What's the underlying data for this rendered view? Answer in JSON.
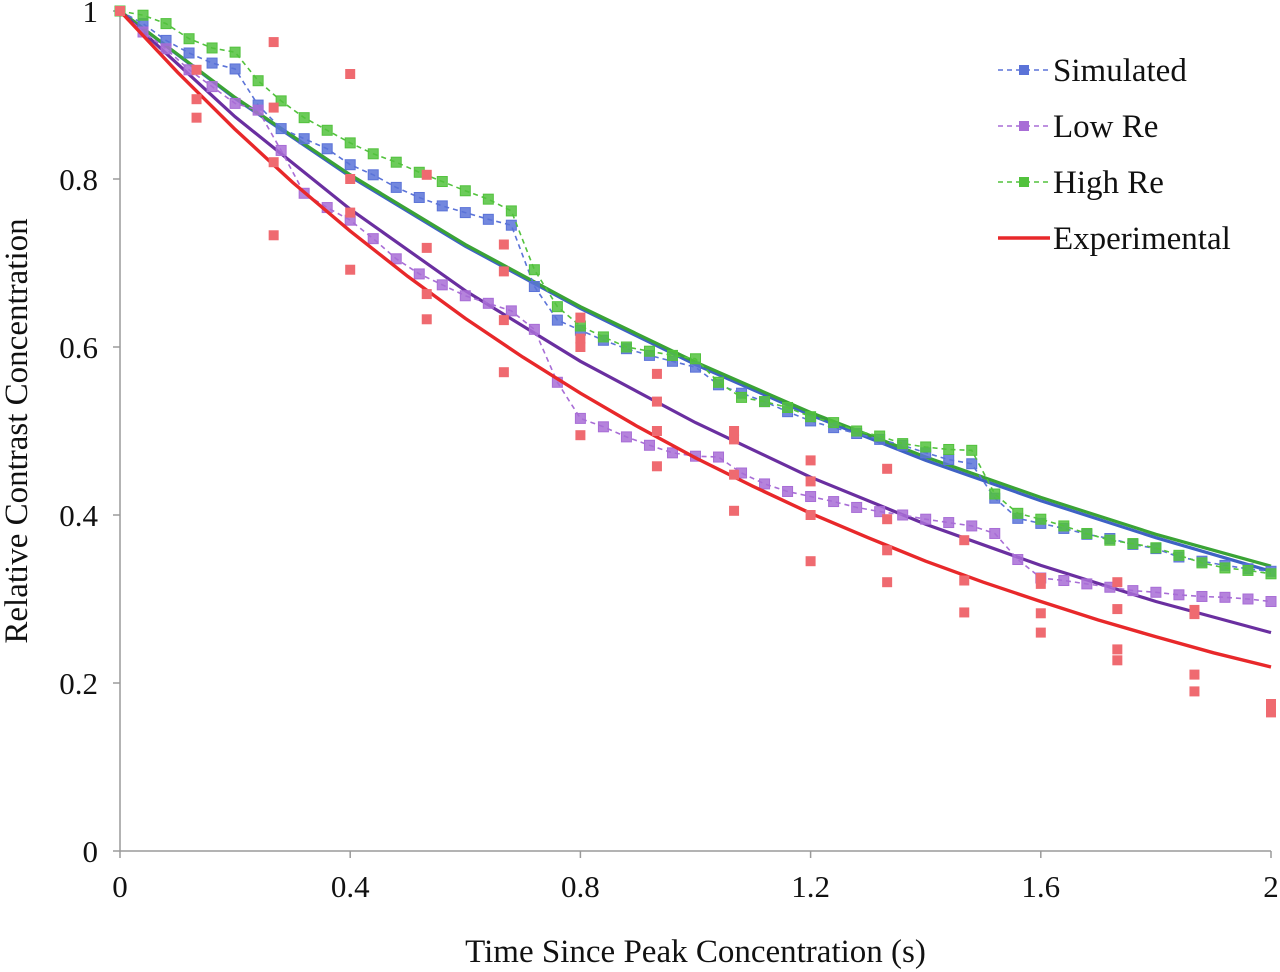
{
  "chart_data": {
    "type": "scatter",
    "title": "",
    "xlabel": "Time Since Peak Concentration (s)",
    "ylabel": "Relative Contrast Concentration",
    "xlim": [
      0,
      2
    ],
    "ylim": [
      0,
      1
    ],
    "x_ticks": [
      "0",
      "0.4",
      "0.8",
      "1.2",
      "1.6",
      "2"
    ],
    "y_ticks": [
      "0",
      "0.2",
      "0.4",
      "0.6",
      "0.8",
      "1"
    ],
    "x_tick_values": [
      0,
      0.4,
      0.8,
      1.2,
      1.6,
      2
    ],
    "y_tick_values": [
      0,
      0.2,
      0.4,
      0.6,
      0.8,
      1
    ],
    "grid": false,
    "legend_position": "top-right",
    "colors": {
      "simulated": "#5b73d8",
      "low_re": "#a86dd6",
      "high_re": "#52c23d",
      "experimental": "#e8282a",
      "experimental_points": "#ef6a70",
      "simulated_fit": "#3f62c4",
      "low_re_fit": "#6a2fa0",
      "high_re_fit": "#3aa335"
    },
    "series": [
      {
        "name": "Simulated",
        "style": "dashed-line-square-markers",
        "x": [
          0,
          0.04,
          0.08,
          0.12,
          0.16,
          0.2,
          0.24,
          0.28,
          0.32,
          0.36,
          0.4,
          0.44,
          0.48,
          0.52,
          0.56,
          0.6,
          0.64,
          0.68,
          0.72,
          0.76,
          0.8,
          0.84,
          0.88,
          0.92,
          0.96,
          1.0,
          1.04,
          1.08,
          1.12,
          1.16,
          1.2,
          1.24,
          1.28,
          1.32,
          1.36,
          1.4,
          1.44,
          1.48,
          1.52,
          1.56,
          1.6,
          1.64,
          1.68,
          1.72,
          1.76,
          1.8,
          1.84,
          1.88,
          1.92,
          1.96,
          2.0
        ],
        "y": [
          1,
          0.985,
          0.965,
          0.95,
          0.938,
          0.931,
          0.888,
          0.86,
          0.848,
          0.836,
          0.817,
          0.805,
          0.79,
          0.778,
          0.768,
          0.76,
          0.752,
          0.745,
          0.672,
          0.632,
          0.62,
          0.608,
          0.598,
          0.59,
          0.583,
          0.576,
          0.555,
          0.545,
          0.535,
          0.523,
          0.512,
          0.504,
          0.497,
          0.49,
          0.483,
          0.474,
          0.466,
          0.461,
          0.42,
          0.396,
          0.39,
          0.384,
          0.377,
          0.372,
          0.365,
          0.36,
          0.35,
          0.345,
          0.34,
          0.336,
          0.333
        ]
      },
      {
        "name": "Low Re",
        "style": "dashed-line-square-markers",
        "x": [
          0,
          0.04,
          0.08,
          0.12,
          0.16,
          0.2,
          0.24,
          0.28,
          0.32,
          0.36,
          0.4,
          0.44,
          0.48,
          0.52,
          0.56,
          0.6,
          0.64,
          0.68,
          0.72,
          0.76,
          0.8,
          0.84,
          0.88,
          0.92,
          0.96,
          1.0,
          1.04,
          1.08,
          1.12,
          1.16,
          1.2,
          1.24,
          1.28,
          1.32,
          1.36,
          1.4,
          1.44,
          1.48,
          1.52,
          1.56,
          1.6,
          1.64,
          1.68,
          1.72,
          1.76,
          1.8,
          1.84,
          1.88,
          1.92,
          1.96,
          2.0
        ],
        "y": [
          1,
          0.975,
          0.955,
          0.93,
          0.91,
          0.89,
          0.882,
          0.834,
          0.783,
          0.766,
          0.751,
          0.729,
          0.705,
          0.687,
          0.674,
          0.661,
          0.652,
          0.643,
          0.621,
          0.558,
          0.515,
          0.505,
          0.493,
          0.483,
          0.474,
          0.47,
          0.469,
          0.45,
          0.437,
          0.428,
          0.422,
          0.416,
          0.409,
          0.404,
          0.4,
          0.395,
          0.391,
          0.387,
          0.378,
          0.347,
          0.325,
          0.322,
          0.318,
          0.314,
          0.31,
          0.308,
          0.305,
          0.303,
          0.302,
          0.3,
          0.297
        ]
      },
      {
        "name": "High Re",
        "style": "dashed-line-square-markers",
        "x": [
          0,
          0.04,
          0.08,
          0.12,
          0.16,
          0.2,
          0.24,
          0.28,
          0.32,
          0.36,
          0.4,
          0.44,
          0.48,
          0.52,
          0.56,
          0.6,
          0.64,
          0.68,
          0.72,
          0.76,
          0.8,
          0.84,
          0.88,
          0.92,
          0.96,
          1.0,
          1.04,
          1.08,
          1.12,
          1.16,
          1.2,
          1.24,
          1.28,
          1.32,
          1.36,
          1.4,
          1.44,
          1.48,
          1.52,
          1.56,
          1.6,
          1.64,
          1.68,
          1.72,
          1.76,
          1.8,
          1.84,
          1.88,
          1.92,
          1.96,
          2.0
        ],
        "y": [
          1,
          0.995,
          0.985,
          0.967,
          0.956,
          0.951,
          0.917,
          0.893,
          0.873,
          0.858,
          0.843,
          0.83,
          0.82,
          0.808,
          0.797,
          0.786,
          0.776,
          0.762,
          0.692,
          0.648,
          0.625,
          0.612,
          0.6,
          0.595,
          0.59,
          0.586,
          0.558,
          0.54,
          0.535,
          0.528,
          0.517,
          0.51,
          0.5,
          0.494,
          0.485,
          0.481,
          0.478,
          0.477,
          0.425,
          0.402,
          0.395,
          0.387,
          0.378,
          0.37,
          0.366,
          0.361,
          0.352,
          0.343,
          0.337,
          0.334,
          0.33
        ]
      },
      {
        "name": "Experimental",
        "style": "solid-line",
        "x": [
          0,
          0.1,
          0.2,
          0.3,
          0.4,
          0.5,
          0.6,
          0.7,
          0.8,
          0.9,
          1.0,
          1.1,
          1.2,
          1.3,
          1.4,
          1.5,
          1.6,
          1.7,
          1.8,
          1.9,
          2.0
        ],
        "y": [
          1,
          0.927,
          0.859,
          0.796,
          0.738,
          0.684,
          0.634,
          0.588,
          0.545,
          0.505,
          0.468,
          0.434,
          0.402,
          0.373,
          0.345,
          0.32,
          0.297,
          0.275,
          0.255,
          0.236,
          0.219
        ]
      }
    ],
    "unlabeled_series": [
      {
        "role": "experimental-points",
        "style": "square-markers",
        "x": [
          0,
          0.133,
          0.133,
          0.133,
          0.267,
          0.267,
          0.267,
          0.267,
          0.4,
          0.4,
          0.4,
          0.4,
          0.533,
          0.533,
          0.533,
          0.533,
          0.667,
          0.667,
          0.667,
          0.667,
          0.8,
          0.8,
          0.8,
          0.8,
          0.933,
          0.933,
          0.933,
          0.933,
          1.067,
          1.067,
          1.067,
          1.067,
          1.2,
          1.2,
          1.2,
          1.2,
          1.333,
          1.333,
          1.333,
          1.333,
          1.467,
          1.467,
          1.467,
          1.6,
          1.6,
          1.6,
          1.6,
          1.733,
          1.733,
          1.733,
          1.733,
          1.867,
          1.867,
          1.867,
          1.867,
          2.0,
          2.0
        ],
        "y": [
          1,
          0.93,
          0.895,
          0.873,
          0.963,
          0.885,
          0.82,
          0.733,
          0.925,
          0.8,
          0.76,
          0.692,
          0.805,
          0.718,
          0.663,
          0.633,
          0.722,
          0.69,
          0.632,
          0.57,
          0.635,
          0.61,
          0.6,
          0.495,
          0.568,
          0.535,
          0.5,
          0.458,
          0.5,
          0.49,
          0.448,
          0.405,
          0.465,
          0.44,
          0.4,
          0.345,
          0.455,
          0.395,
          0.358,
          0.32,
          0.37,
          0.322,
          0.284,
          0.325,
          0.318,
          0.283,
          0.26,
          0.32,
          0.288,
          0.24,
          0.227,
          0.287,
          0.282,
          0.21,
          0.19,
          0.175,
          0.165
        ]
      },
      {
        "role": "simulated-fit",
        "style": "solid-line",
        "x": [
          0,
          0.2,
          0.4,
          0.6,
          0.8,
          1.0,
          1.2,
          1.4,
          1.6,
          1.8,
          2.0
        ],
        "y": [
          1,
          0.896,
          0.803,
          0.72,
          0.646,
          0.579,
          0.519,
          0.465,
          0.417,
          0.373,
          0.333
        ]
      },
      {
        "role": "high-re-fit",
        "style": "solid-line",
        "x": [
          0,
          0.2,
          0.4,
          0.6,
          0.8,
          1.0,
          1.2,
          1.4,
          1.6,
          1.8,
          2.0
        ],
        "y": [
          1,
          0.897,
          0.805,
          0.722,
          0.648,
          0.582,
          0.522,
          0.469,
          0.421,
          0.377,
          0.339
        ]
      },
      {
        "role": "low-re-fit",
        "style": "solid-line",
        "x": [
          0,
          0.2,
          0.4,
          0.6,
          0.8,
          1.0,
          1.2,
          1.4,
          1.6,
          1.8,
          2.0
        ],
        "y": [
          1,
          0.874,
          0.764,
          0.667,
          0.583,
          0.51,
          0.445,
          0.389,
          0.34,
          0.297,
          0.26
        ]
      }
    ]
  }
}
